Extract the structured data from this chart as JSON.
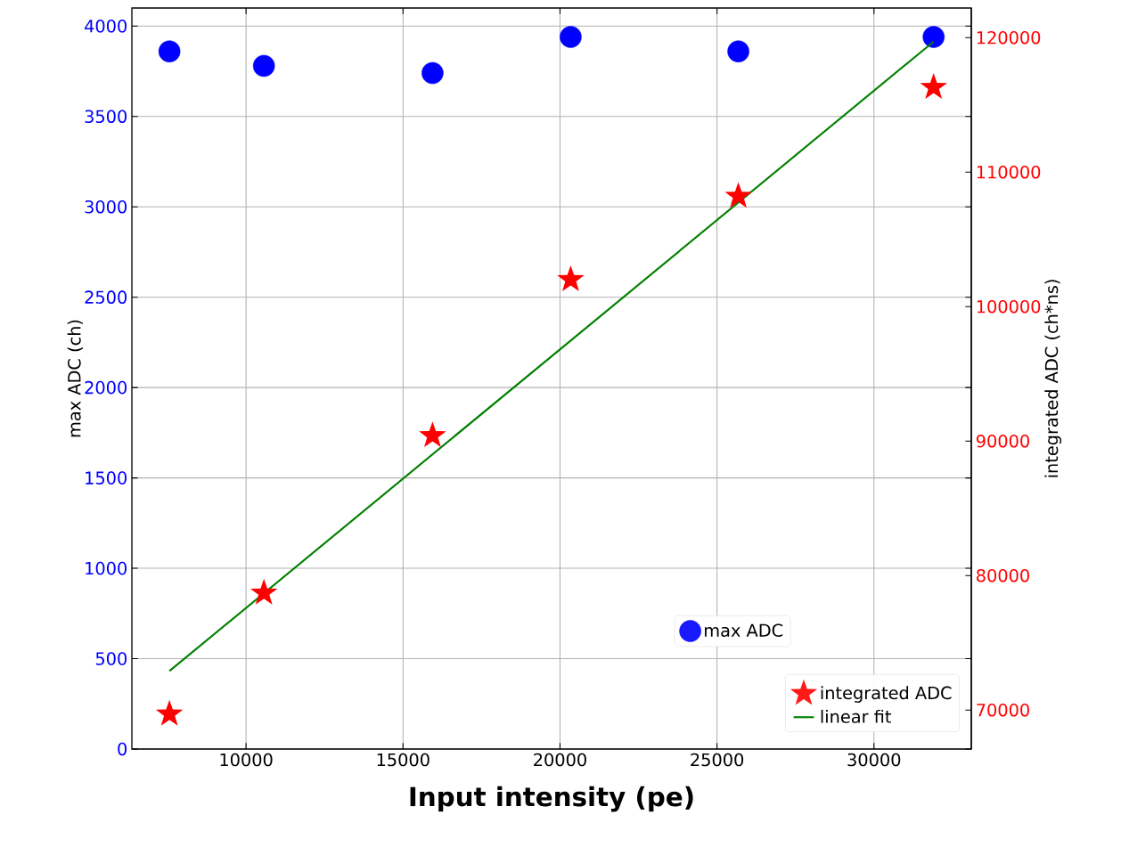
{
  "chart_data": {
    "type": "scatter",
    "xlabel": "Input intensity (pe)",
    "ylabel": "max ADC (ch)",
    "y2label": "integrated ADC (ch*ns)",
    "xlim": [
      6364,
      33100
    ],
    "xticks": [
      10000,
      15000,
      20000,
      25000,
      30000
    ],
    "ylim": [
      0,
      4100
    ],
    "yticks": [
      0,
      500,
      1000,
      1500,
      2000,
      2500,
      3000,
      3500,
      4000
    ],
    "y2lim": [
      67100,
      122200
    ],
    "y2ticks": [
      70000,
      80000,
      90000,
      100000,
      110000,
      120000
    ],
    "grid": true,
    "legend": "bottom right",
    "series": [
      {
        "name": "max ADC",
        "marker": "circle",
        "color": "#0000ff",
        "x": [
          7560,
          10570,
          15940,
          20340,
          25680,
          31900
        ],
        "values": [
          3860,
          3780,
          3740,
          3940,
          3860,
          3940
        ]
      },
      {
        "name": "integrated ADC",
        "marker": "star",
        "axis": "y2",
        "color": "#ff0000",
        "x": [
          7560,
          10570,
          15940,
          20340,
          25680,
          31900
        ],
        "values": [
          69700,
          78700,
          90400,
          102000,
          108200,
          116300
        ]
      },
      {
        "name": "linear fit",
        "type": "line",
        "marker": "none",
        "axis": "y2",
        "color": "#008000",
        "x": [
          7560,
          31900
        ],
        "values": [
          72900,
          119700
        ]
      }
    ]
  }
}
